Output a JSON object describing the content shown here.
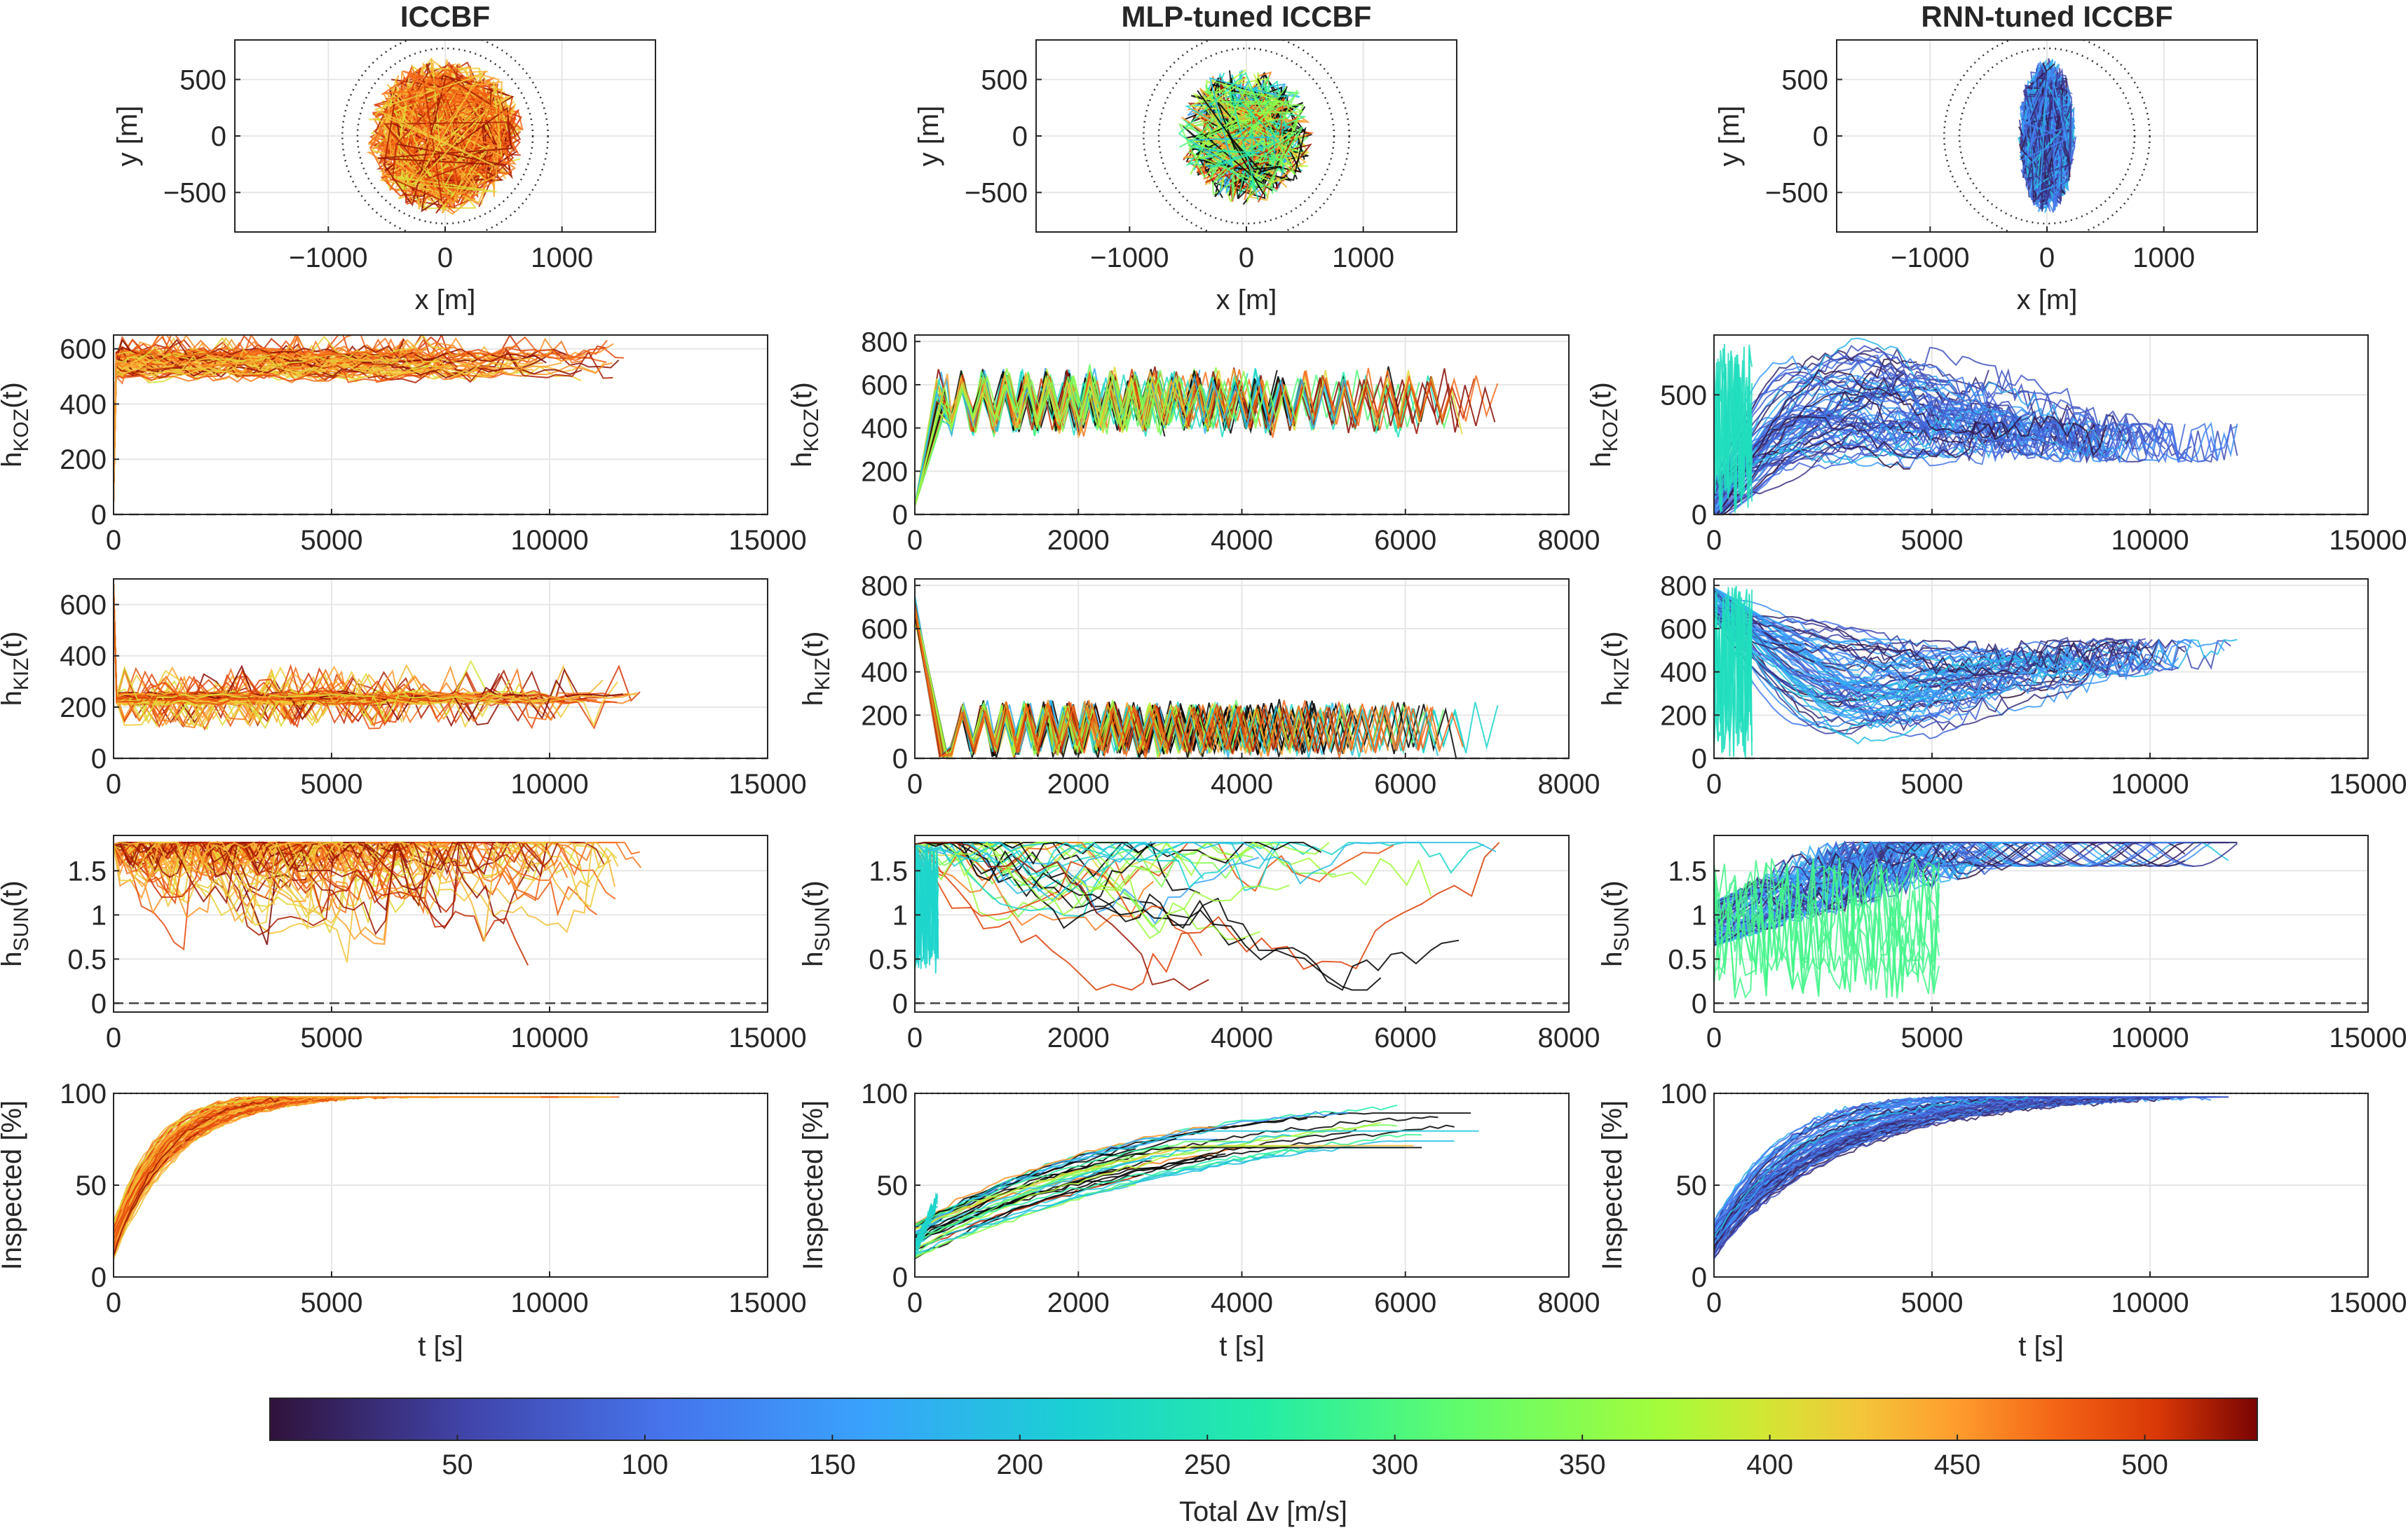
{
  "chart_data": {
    "type": "line",
    "figure_layout": "5 rows x 3 columns of subplots with shared colorbar",
    "columns": [
      {
        "title": "ICCBF",
        "xmax_time": 15000,
        "color_range": [
          400,
          530
        ]
      },
      {
        "title": "MLP-tuned ICCBF",
        "xmax_time": 8000,
        "color_range": [
          150,
          530
        ]
      },
      {
        "title": "RNN-tuned ICCBF",
        "xmax_time": 15000,
        "color_range": [
          0,
          200
        ]
      }
    ],
    "rows": [
      {
        "id": "trajectory",
        "xlabel": "x [m]",
        "ylabel": "y [m]",
        "xlim": [
          -1800,
          1800
        ],
        "ylim": [
          -850,
          850
        ],
        "xticks": [
          -1000,
          0,
          1000
        ],
        "yticks": [
          -500,
          0,
          500
        ],
        "xtick_labels": [
          "-1000",
          "0",
          "1000"
        ],
        "ytick_labels": [
          "-500",
          "0",
          "500"
        ],
        "reference_circles_radius_m": [
          750,
          880
        ]
      },
      {
        "id": "h_koz",
        "ylabel_main": "h",
        "ylabel_sub": "KOZ",
        "ylabel_suffix": "(t)",
        "ylims": [
          [
            0,
            650
          ],
          [
            0,
            830
          ],
          [
            0,
            750
          ]
        ],
        "ytick_sets": [
          [
            0,
            200,
            400,
            600
          ],
          [
            0,
            200,
            400,
            600,
            800
          ],
          [
            0,
            500
          ]
        ],
        "baseline": 0
      },
      {
        "id": "h_kiz",
        "ylabel_main": "h",
        "ylabel_sub": "KIZ",
        "ylabel_suffix": "(t)",
        "ylims": [
          [
            0,
            700
          ],
          [
            0,
            830
          ],
          [
            0,
            830
          ]
        ],
        "ytick_sets": [
          [
            0,
            200,
            400,
            600
          ],
          [
            0,
            200,
            400,
            600,
            800
          ],
          [
            0,
            200,
            400,
            600,
            800
          ]
        ],
        "baseline": 0
      },
      {
        "id": "h_sun",
        "ylabel_main": "h",
        "ylabel_sub": "SUN",
        "ylabel_suffix": "(t)",
        "ylims": [
          [
            -0.1,
            1.9
          ],
          [
            -0.1,
            1.9
          ],
          [
            -0.1,
            1.9
          ]
        ],
        "ytick_sets": [
          [
            0,
            0.5,
            1,
            1.5
          ],
          [
            0,
            0.5,
            1,
            1.5
          ],
          [
            0,
            0.5,
            1,
            1.5
          ]
        ],
        "ytick_labels": [
          "0",
          "0.5",
          "1",
          "1.5"
        ],
        "baseline": 0
      },
      {
        "id": "inspected",
        "ylabel": "Inspected [%]",
        "xlabel": "t [s]",
        "ylims": [
          [
            0,
            100
          ],
          [
            0,
            100
          ],
          [
            0,
            100
          ]
        ],
        "ytick_sets": [
          [
            0,
            50,
            100
          ],
          [
            0,
            50,
            100
          ],
          [
            0,
            50,
            100
          ]
        ],
        "reference": 100
      }
    ],
    "xtick_sets": {
      "15000": [
        0,
        5000,
        10000,
        15000
      ],
      "8000": [
        0,
        2000,
        4000,
        6000,
        8000
      ]
    },
    "colorbar": {
      "label": "Total Δv [m/s]",
      "range": [
        0,
        530
      ],
      "ticks": [
        50,
        100,
        150,
        200,
        250,
        300,
        350,
        400,
        450,
        500
      ],
      "colormap": "turbo"
    }
  }
}
